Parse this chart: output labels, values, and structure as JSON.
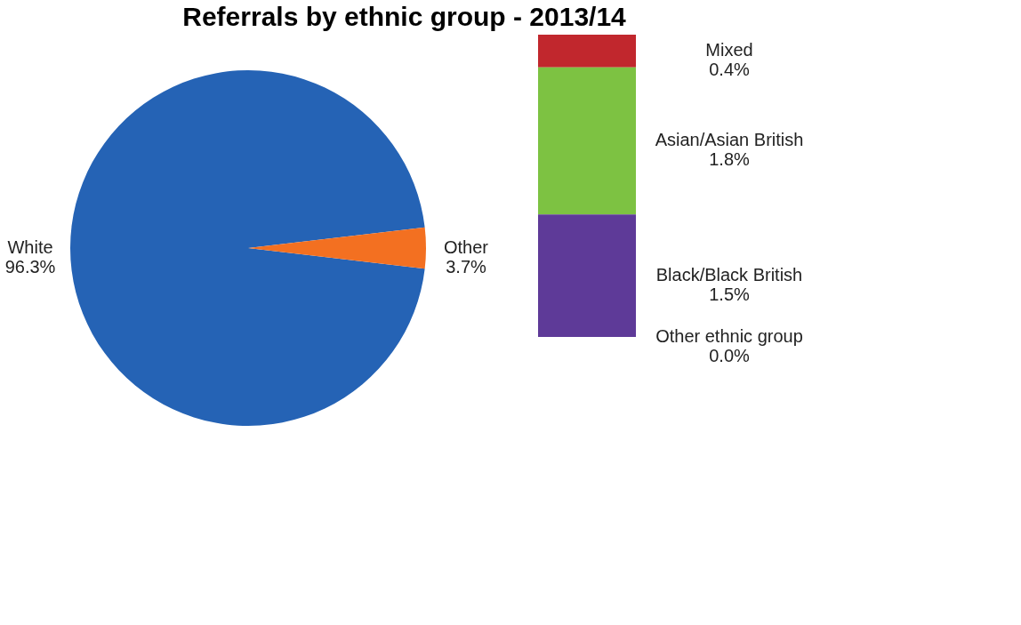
{
  "chart_data": [
    {
      "type": "pie",
      "title": "Referrals by ethnic group - 2013/14",
      "categories": [
        "White",
        "Other"
      ],
      "values": [
        96.3,
        3.7
      ],
      "value_labels": [
        "96.3%",
        "3.7%"
      ],
      "colors": [
        "#2563b5",
        "#f37021"
      ]
    },
    {
      "type": "other",
      "categories": [
        "Mixed",
        "Asian/Asian British",
        "Black/Black British",
        "Other ethnic group"
      ],
      "values": [
        0.4,
        1.8,
        1.5,
        0.0
      ],
      "value_labels": [
        "0.4%",
        "1.8%",
        "1.5%",
        "0.0%"
      ],
      "colors": [
        "#c1272d",
        "#7dc242",
        "#5e3a98",
        "#4bacc6"
      ]
    }
  ]
}
